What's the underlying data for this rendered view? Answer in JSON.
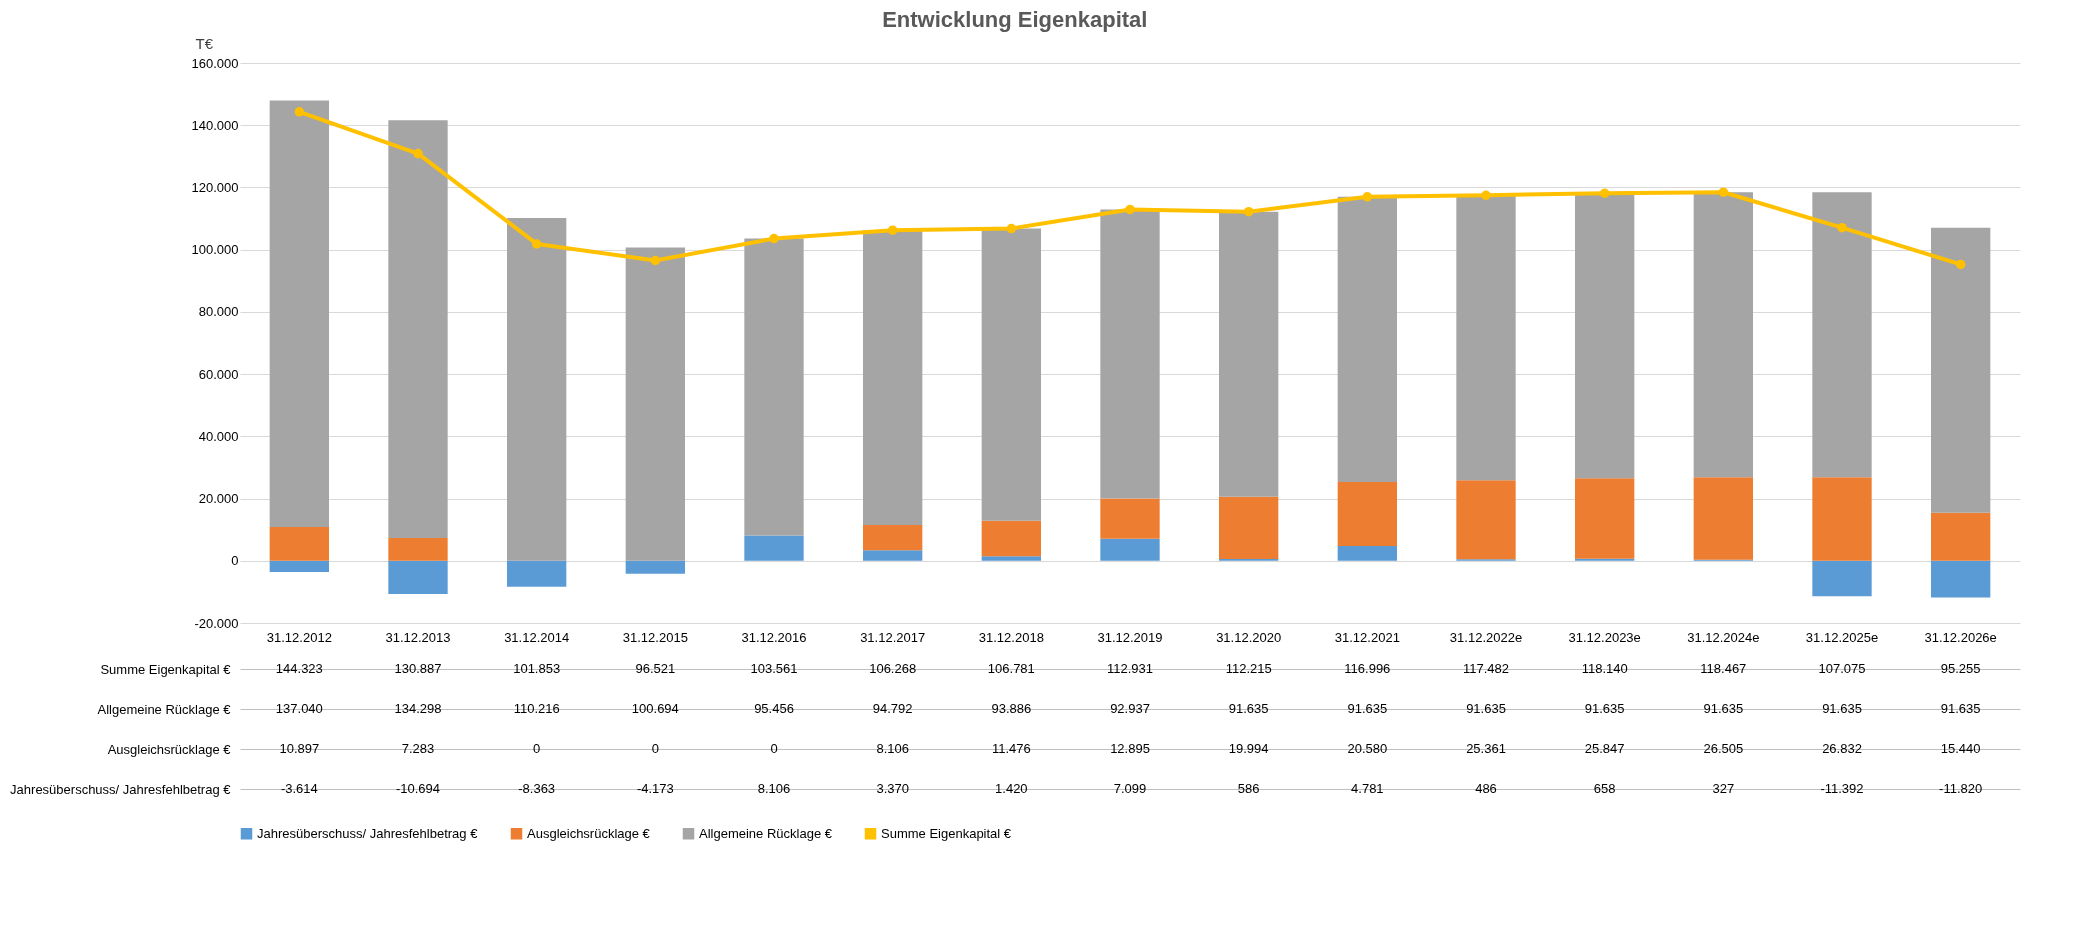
{
  "chart_data": {
    "type": "bar",
    "title": "Entwicklung Eigenkapital",
    "ylabel": "T€",
    "stacked": true,
    "legend": "bottom",
    "grid": "y",
    "marker": "circle",
    "categories": [
      "31.12.2012",
      "31.12.2013",
      "31.12.2014",
      "31.12.2015",
      "31.12.2016",
      "31.12.2017",
      "31.12.2018",
      "31.12.2019",
      "31.12.2020",
      "31.12.2021",
      "31.12.2022e",
      "31.12.2023e",
      "31.12.2024e",
      "31.12.2025e",
      "31.12.2026e"
    ],
    "ylim": [
      -20000,
      160000
    ],
    "yticks": [
      {
        "value": -20000,
        "label": "-20.000"
      },
      {
        "value": 0,
        "label": "0"
      },
      {
        "value": 20000,
        "label": "20.000"
      },
      {
        "value": 40000,
        "label": "40.000"
      },
      {
        "value": 60000,
        "label": "60.000"
      },
      {
        "value": 80000,
        "label": "80.000"
      },
      {
        "value": 100000,
        "label": "100.000"
      },
      {
        "value": 120000,
        "label": "120.000"
      },
      {
        "value": 140000,
        "label": "140.000"
      },
      {
        "value": 160000,
        "label": "160.000"
      }
    ],
    "series": [
      {
        "name": "Jahresüberschuss/ Jahresfehlbetrag €",
        "color": "#5b9bd5",
        "values": [
          -3614,
          -10694,
          -8363,
          -4173,
          8106,
          3370,
          1420,
          7099,
          586,
          4781,
          486,
          658,
          327,
          -11392,
          -11820
        ],
        "value_labels": [
          "-3.614",
          "-10.694",
          "-8.363",
          "-4.173",
          "8.106",
          "3.370",
          "1.420",
          "7.099",
          "586",
          "4.781",
          "486",
          "658",
          "327",
          "-11.392",
          "-11.820"
        ]
      },
      {
        "name": "Ausgleichsrücklage €",
        "color": "#ed7d31",
        "values": [
          10897,
          7283,
          0,
          0,
          0,
          8106,
          11476,
          12895,
          19994,
          20580,
          25361,
          25847,
          26505,
          26832,
          15440
        ],
        "value_labels": [
          "10.897",
          "7.283",
          "0",
          "0",
          "0",
          "8.106",
          "11.476",
          "12.895",
          "19.994",
          "20.580",
          "25.361",
          "25.847",
          "26.505",
          "26.832",
          "15.440"
        ]
      },
      {
        "name": "Allgemeine Rücklage €",
        "color": "#a5a5a5",
        "values": [
          137040,
          134298,
          110216,
          100694,
          95456,
          94792,
          93886,
          92937,
          91635,
          91635,
          91635,
          91635,
          91635,
          91635,
          91635
        ],
        "value_labels": [
          "137.040",
          "134.298",
          "110.216",
          "100.694",
          "95.456",
          "94.792",
          "93.886",
          "92.937",
          "91.635",
          "91.635",
          "91.635",
          "91.635",
          "91.635",
          "91.635",
          "91.635"
        ]
      },
      {
        "name": "Summe Eigenkapital €",
        "type": "line",
        "color": "#ffc000",
        "values": [
          144323,
          130887,
          101853,
          96521,
          103561,
          106268,
          106781,
          112931,
          112215,
          116996,
          117482,
          118140,
          118467,
          107075,
          95255
        ],
        "value_labels": [
          "144.323",
          "130.887",
          "101.853",
          "96.521",
          "103.561",
          "106.268",
          "106.781",
          "112.931",
          "112.215",
          "116.996",
          "117.482",
          "118.140",
          "118.467",
          "107.075",
          "95.255"
        ]
      }
    ]
  }
}
